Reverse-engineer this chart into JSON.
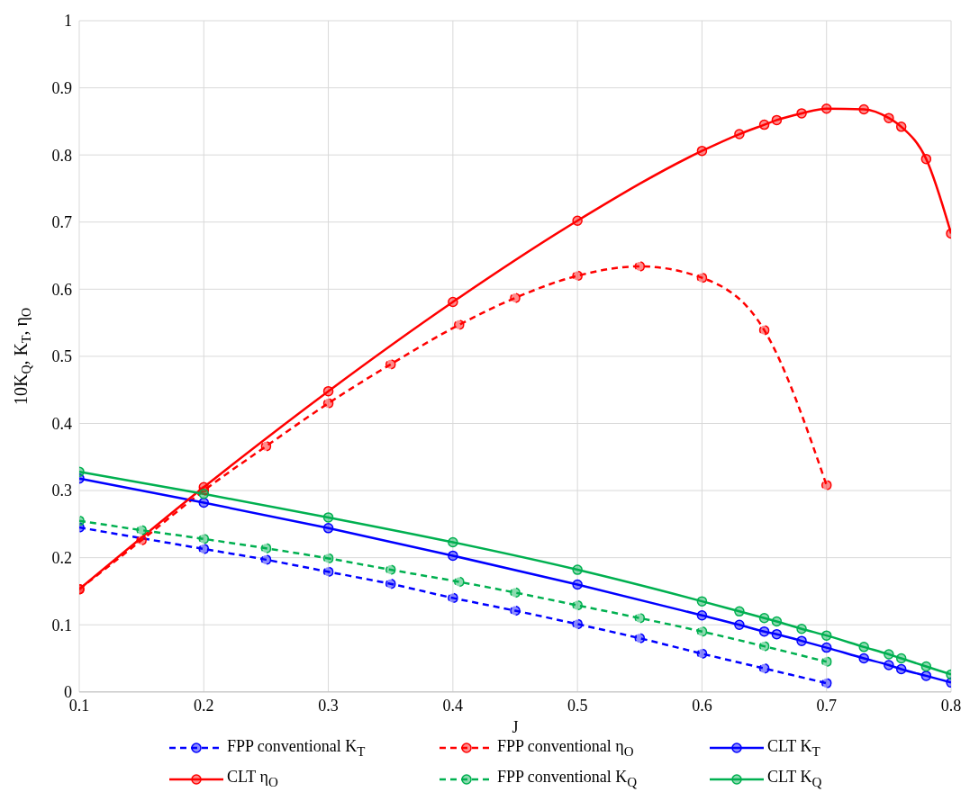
{
  "chart_data": {
    "type": "line",
    "xlabel": "J",
    "ylabel": "10K$_{Q}$, K$_{T}$, η$_{O}$",
    "xlim": [
      0.1,
      0.8
    ],
    "xticks": [
      0.1,
      0.2,
      0.3,
      0.4,
      0.5,
      0.6,
      0.7,
      0.8
    ],
    "ylim": [
      0,
      1
    ],
    "yticks": [
      0,
      0.1,
      0.2,
      0.3,
      0.4,
      0.5,
      0.6,
      0.7,
      0.8,
      0.9,
      1
    ],
    "grid": true,
    "legend": "bottom",
    "marker": "circle",
    "series": [
      {
        "name": "FPP conventional K$_{T}$",
        "color": "#0000ff",
        "line_style": "dashed",
        "x": [
          0.1,
          0.2,
          0.25,
          0.3,
          0.35,
          0.4,
          0.45,
          0.5,
          0.55,
          0.6,
          0.65,
          0.7
        ],
        "values": [
          0.245,
          0.213,
          0.197,
          0.179,
          0.161,
          0.14,
          0.121,
          0.101,
          0.08,
          0.057,
          0.035,
          0.013
        ]
      },
      {
        "name": "FPP conventional η$_{O}$",
        "color": "#ff0000",
        "line_style": "dashed",
        "x": [
          0.1,
          0.15,
          0.2,
          0.25,
          0.3,
          0.35,
          0.405,
          0.45,
          0.5,
          0.55,
          0.6,
          0.65,
          0.7
        ],
        "values": [
          0.153,
          0.226,
          0.3,
          0.366,
          0.43,
          0.488,
          0.547,
          0.587,
          0.62,
          0.634,
          0.617,
          0.539,
          0.308
        ]
      },
      {
        "name": "CLT K$_{T}$",
        "color": "#0000ff",
        "line_style": "solid",
        "x": [
          0.1,
          0.2,
          0.3,
          0.4,
          0.5,
          0.6,
          0.63,
          0.65,
          0.66,
          0.68,
          0.7,
          0.73,
          0.75,
          0.76,
          0.78,
          0.8
        ],
        "values": [
          0.318,
          0.282,
          0.244,
          0.203,
          0.16,
          0.114,
          0.1,
          0.09,
          0.086,
          0.076,
          0.066,
          0.05,
          0.04,
          0.034,
          0.024,
          0.014
        ]
      },
      {
        "name": "CLT η$_{O}$",
        "color": "#ff0000",
        "line_style": "solid",
        "x": [
          0.1,
          0.2,
          0.3,
          0.4,
          0.5,
          0.6,
          0.63,
          0.65,
          0.66,
          0.68,
          0.7,
          0.73,
          0.75,
          0.76,
          0.78,
          0.8
        ],
        "values": [
          0.153,
          0.305,
          0.448,
          0.581,
          0.702,
          0.806,
          0.831,
          0.845,
          0.852,
          0.862,
          0.869,
          0.868,
          0.855,
          0.842,
          0.794,
          0.683
        ]
      },
      {
        "name": "FPP conventional K$_{Q}$",
        "color": "#00b050",
        "line_style": "dashed",
        "x": [
          0.1,
          0.15,
          0.2,
          0.25,
          0.3,
          0.35,
          0.405,
          0.45,
          0.5,
          0.55,
          0.6,
          0.65,
          0.7
        ],
        "values": [
          0.255,
          0.241,
          0.228,
          0.214,
          0.199,
          0.182,
          0.164,
          0.148,
          0.129,
          0.11,
          0.09,
          0.068,
          0.045
        ]
      },
      {
        "name": "CLT K$_{Q}$",
        "color": "#00b050",
        "line_style": "solid",
        "x": [
          0.1,
          0.2,
          0.3,
          0.4,
          0.5,
          0.6,
          0.63,
          0.65,
          0.66,
          0.68,
          0.7,
          0.73,
          0.75,
          0.76,
          0.78,
          0.8
        ],
        "values": [
          0.328,
          0.295,
          0.26,
          0.223,
          0.182,
          0.135,
          0.12,
          0.11,
          0.105,
          0.094,
          0.084,
          0.067,
          0.056,
          0.05,
          0.038,
          0.026
        ]
      }
    ]
  }
}
